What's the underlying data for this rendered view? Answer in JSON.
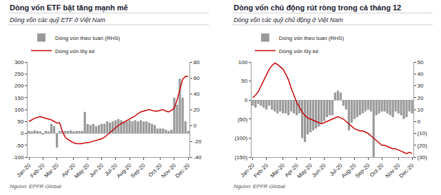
{
  "chart_data": [
    {
      "type": "bar",
      "title": "Dòng vốn ETF bật tăng mạnh mẽ",
      "subtitle": "Dòng vốn các quỹ ETF ở Việt Nam",
      "categories": [
        "Jan-20",
        null,
        null,
        null,
        null,
        "Feb-20",
        null,
        null,
        null,
        null,
        "Mar-20",
        null,
        null,
        null,
        null,
        null,
        "Apr-20",
        null,
        null,
        null,
        null,
        "May-20",
        null,
        null,
        null,
        null,
        "Jun-20",
        null,
        null,
        null,
        null,
        "Jul-20",
        null,
        null,
        null,
        null,
        "Aug-20",
        null,
        null,
        null,
        null,
        "Sep-20",
        null,
        null,
        null,
        null,
        null,
        "Oct-20",
        null,
        null,
        null,
        null,
        "Nov-20",
        null,
        null,
        null,
        null,
        "Dec-20"
      ],
      "series": [
        {
          "name": "Dòng vốn theo tuần (RHS)",
          "type": "bar",
          "color": "#999999",
          "values": [
            10,
            8,
            12,
            10,
            8,
            -5,
            10,
            8,
            40,
            30,
            -60,
            10,
            10,
            10,
            10,
            12,
            8,
            10,
            10,
            10,
            90,
            40,
            35,
            40,
            30,
            35,
            40,
            40,
            50,
            45,
            50,
            55,
            60,
            55,
            50,
            50,
            55,
            50,
            55,
            50,
            55,
            50,
            50,
            45,
            40,
            35,
            20,
            20,
            20,
            15,
            10,
            15,
            150,
            120,
            230,
            150,
            50,
            10
          ]
        },
        {
          "name": "Dòng vốn lũy kế",
          "type": "line",
          "color": "#cc0000",
          "axis": "y2",
          "values": [
            5,
            7,
            9,
            10,
            11,
            10,
            9,
            8,
            7,
            5,
            3,
            3,
            -8,
            -15,
            -18,
            -20,
            -22,
            -23,
            -23,
            -23,
            -22,
            -22,
            -21,
            -20,
            -19,
            -18,
            -17,
            -15,
            -12,
            -9,
            -6,
            -3,
            0,
            2,
            4,
            6,
            8,
            10,
            12,
            15,
            17,
            18,
            19,
            20,
            19,
            18,
            18,
            19,
            20,
            18,
            17,
            19,
            22,
            32,
            45,
            58,
            62,
            62
          ]
        }
      ],
      "ylim": [
        -100,
        300
      ],
      "yticks": [
        -100,
        -50,
        0,
        50,
        100,
        150,
        200,
        250,
        300
      ],
      "y2lim": [
        -40,
        80
      ],
      "y2ticks": [
        -40,
        -20,
        0,
        20,
        40,
        60,
        80
      ],
      "grid": false,
      "legend": "upper left",
      "annotations": [
        "Nguồn: EPFR Global"
      ]
    },
    {
      "type": "bar",
      "title": "Dòng vốn chủ động rút ròng trong cả tháng 12",
      "subtitle": "Dòng vốn các quỹ chủ động ở Việt Nam",
      "categories": [
        "Jan-20",
        null,
        null,
        null,
        null,
        "Feb-20",
        null,
        null,
        null,
        null,
        null,
        "Mar-20",
        null,
        null,
        null,
        null,
        "Apr-20",
        null,
        null,
        null,
        null,
        "May-20",
        null,
        null,
        null,
        null,
        "Jun-20",
        null,
        null,
        null,
        null,
        null,
        "Jul-20",
        null,
        null,
        null,
        null,
        "Aug-20",
        null,
        null,
        null,
        null,
        "Sep-20",
        null,
        null,
        null,
        null,
        "Oct-20",
        null,
        null,
        null,
        null,
        null,
        "Nov-20",
        null,
        null,
        null,
        null,
        "Dec-20"
      ],
      "series": [
        {
          "name": "Dòng vốn theo tuần (RHS)",
          "type": "bar",
          "color": "#999999",
          "values": [
            -15,
            -20,
            -10,
            -15,
            -20,
            -25,
            -15,
            -25,
            -30,
            -35,
            -30,
            -35,
            -35,
            -40,
            -30,
            -35,
            -40,
            -35,
            -100,
            -110,
            -90,
            -85,
            -80,
            -75,
            -70,
            -60,
            -55,
            -45,
            -40,
            -40,
            20,
            25,
            20,
            -15,
            -25,
            -80,
            -60,
            -50,
            -45,
            -40,
            -35,
            -30,
            -25,
            -30,
            -150,
            -40,
            -35,
            -30,
            -30,
            -35,
            -40,
            -45,
            -30,
            -35,
            -40,
            -50,
            -45,
            -30,
            -35
          ]
        },
        {
          "name": "Dòng vốn lũy kế",
          "type": "line",
          "color": "#cc0000",
          "axis": "y2",
          "values": [
            20,
            22,
            25,
            30,
            35,
            40,
            44,
            47,
            49,
            48,
            46,
            44,
            40,
            35,
            28,
            22,
            16,
            12,
            8,
            5,
            3,
            2,
            1,
            0,
            -1,
            -2,
            -1,
            0,
            1,
            2,
            3,
            4,
            3,
            2,
            0,
            -2,
            -4,
            -6,
            -7,
            -8,
            -8,
            -9,
            -10,
            -12,
            -14,
            -16,
            -18,
            -20,
            -20,
            -21,
            -22,
            -23,
            -23,
            -24,
            -25,
            -26,
            -27,
            -26,
            -27
          ]
        }
      ],
      "ylim": [
        -150,
        100
      ],
      "yticks": [
        {
          "value": -150,
          "label": "(150)"
        },
        {
          "value": -100,
          "label": "(100)"
        },
        {
          "value": -50,
          "label": "(50)"
        },
        0,
        50,
        100
      ],
      "y2lim": [
        -30,
        50
      ],
      "y2ticks": [
        {
          "value": -30,
          "label": "(30)"
        },
        {
          "value": -20,
          "label": "(20)"
        },
        {
          "value": -10,
          "label": "(10)"
        },
        0,
        10,
        20,
        30,
        40,
        50
      ],
      "grid": false,
      "legend": "upper left",
      "annotations": [
        "Nguồn: EPFR Global"
      ]
    }
  ]
}
